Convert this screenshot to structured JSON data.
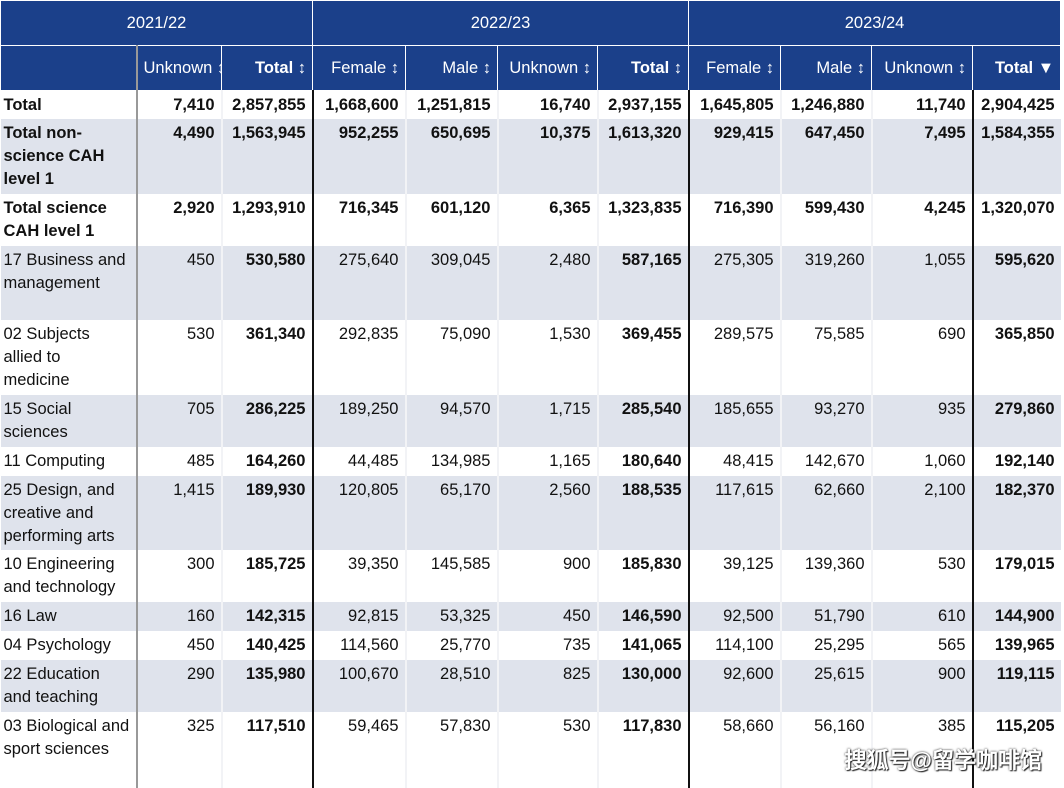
{
  "years": [
    "2021/22",
    "2022/23",
    "2023/24"
  ],
  "columns": [
    "Unknown ↕",
    "Total ↕",
    "Female ↕",
    "Male ↕",
    "Unknown ↕",
    "Total ↕",
    "Female ↕",
    "Male ↕",
    "Unknown ↕",
    "Total ▼"
  ],
  "rows": [
    {
      "label": "Total",
      "bold": true,
      "values": [
        "7,410",
        "2,857,855",
        "1,668,600",
        "1,251,815",
        "16,740",
        "2,937,155",
        "1,645,805",
        "1,246,880",
        "11,740",
        "2,904,425"
      ]
    },
    {
      "label": "Total non-science CAH level 1",
      "bold": true,
      "values": [
        "4,490",
        "1,563,945",
        "952,255",
        "650,695",
        "10,375",
        "1,613,320",
        "929,415",
        "647,450",
        "7,495",
        "1,584,355"
      ]
    },
    {
      "label": "Total science CAH level 1",
      "bold": true,
      "values": [
        "2,920",
        "1,293,910",
        "716,345",
        "601,120",
        "6,365",
        "1,323,835",
        "716,390",
        "599,430",
        "4,245",
        "1,320,070"
      ]
    },
    {
      "label": "17 Business and management",
      "values": [
        "450",
        "530,580",
        "275,640",
        "309,045",
        "2,480",
        "587,165",
        "275,305",
        "319,260",
        "1,055",
        "595,620"
      ]
    },
    {
      "label": "02 Subjects allied to medicine",
      "values": [
        "530",
        "361,340",
        "292,835",
        "75,090",
        "1,530",
        "369,455",
        "289,575",
        "75,585",
        "690",
        "365,850"
      ]
    },
    {
      "label": "15 Social sciences",
      "values": [
        "705",
        "286,225",
        "189,250",
        "94,570",
        "1,715",
        "285,540",
        "185,655",
        "93,270",
        "935",
        "279,860"
      ]
    },
    {
      "label": "11 Computing",
      "values": [
        "485",
        "164,260",
        "44,485",
        "134,985",
        "1,165",
        "180,640",
        "48,415",
        "142,670",
        "1,060",
        "192,140"
      ]
    },
    {
      "label": "25 Design, and creative and performing arts",
      "values": [
        "1,415",
        "189,930",
        "120,805",
        "65,170",
        "2,560",
        "188,535",
        "117,615",
        "62,660",
        "2,100",
        "182,370"
      ]
    },
    {
      "label": "10 Engineering and technology",
      "values": [
        "300",
        "185,725",
        "39,350",
        "145,585",
        "900",
        "185,830",
        "39,125",
        "139,360",
        "530",
        "179,015"
      ]
    },
    {
      "label": "16 Law",
      "values": [
        "160",
        "142,315",
        "92,815",
        "53,325",
        "450",
        "146,590",
        "92,500",
        "51,790",
        "610",
        "144,900"
      ]
    },
    {
      "label": "04 Psychology",
      "values": [
        "450",
        "140,425",
        "114,560",
        "25,770",
        "735",
        "141,065",
        "114,100",
        "25,295",
        "565",
        "139,965"
      ]
    },
    {
      "label": "22 Education and teaching",
      "values": [
        "290",
        "135,980",
        "100,670",
        "28,510",
        "825",
        "130,000",
        "92,600",
        "25,615",
        "900",
        "119,115"
      ]
    },
    {
      "label": "03 Biological and sport sciences",
      "values": [
        "325",
        "117,510",
        "59,465",
        "57,830",
        "530",
        "117,830",
        "58,660",
        "56,160",
        "385",
        "115,205"
      ]
    }
  ],
  "watermark": "搜狐号@留学咖啡馆"
}
